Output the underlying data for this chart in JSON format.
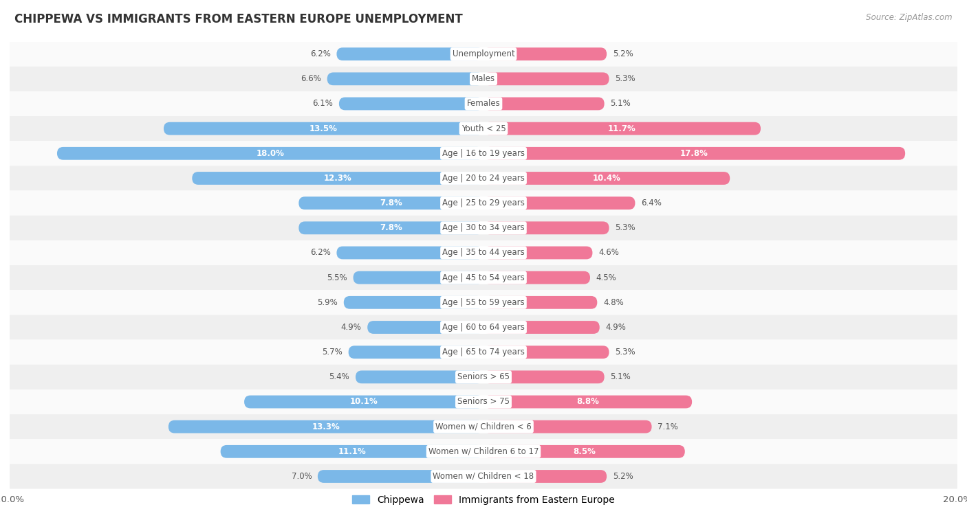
{
  "title": "CHIPPEWA VS IMMIGRANTS FROM EASTERN EUROPE UNEMPLOYMENT",
  "source": "Source: ZipAtlas.com",
  "categories": [
    "Unemployment",
    "Males",
    "Females",
    "Youth < 25",
    "Age | 16 to 19 years",
    "Age | 20 to 24 years",
    "Age | 25 to 29 years",
    "Age | 30 to 34 years",
    "Age | 35 to 44 years",
    "Age | 45 to 54 years",
    "Age | 55 to 59 years",
    "Age | 60 to 64 years",
    "Age | 65 to 74 years",
    "Seniors > 65",
    "Seniors > 75",
    "Women w/ Children < 6",
    "Women w/ Children 6 to 17",
    "Women w/ Children < 18"
  ],
  "chippewa": [
    6.2,
    6.6,
    6.1,
    13.5,
    18.0,
    12.3,
    7.8,
    7.8,
    6.2,
    5.5,
    5.9,
    4.9,
    5.7,
    5.4,
    10.1,
    13.3,
    11.1,
    7.0
  ],
  "eastern_europe": [
    5.2,
    5.3,
    5.1,
    11.7,
    17.8,
    10.4,
    6.4,
    5.3,
    4.6,
    4.5,
    4.8,
    4.9,
    5.3,
    5.1,
    8.8,
    7.1,
    8.5,
    5.2
  ],
  "chippewa_color": "#7BB8E8",
  "eastern_europe_color": "#F07898",
  "bar_height": 0.52,
  "max_val": 20.0,
  "bg_color": "#FFFFFF",
  "row_bg_even": "#EFEFEF",
  "row_bg_odd": "#FAFAFA",
  "legend_chippewa": "Chippewa",
  "legend_eastern_europe": "Immigrants from Eastern Europe",
  "bold_threshold": 7.5,
  "center_label_bg": "#FFFFFF",
  "center_label_color": "#555555",
  "outside_label_color": "#555555",
  "inside_label_color": "#FFFFFF"
}
